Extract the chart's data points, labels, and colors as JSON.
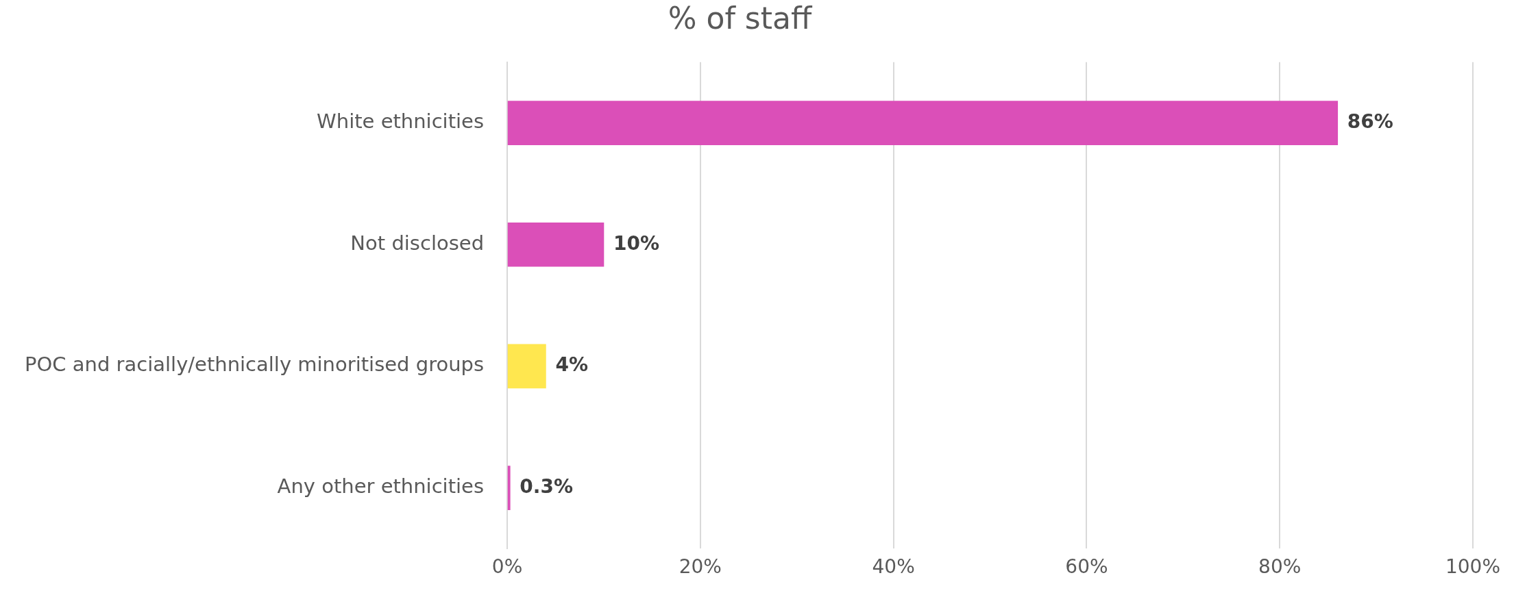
{
  "chart_data": {
    "type": "bar",
    "orientation": "horizontal",
    "title": "% of staff",
    "categories": [
      "White ethnicities",
      "Not disclosed",
      "POC and racially/ethnically minoritised groups",
      "Any other ethnicities"
    ],
    "values": [
      86,
      10,
      4,
      0.3
    ],
    "colors": [
      "#db4fb8",
      "#db4fb8",
      "#ffe74f",
      "#db4fb8"
    ],
    "value_labels": [
      "86%",
      "10%",
      "4%",
      "0.3%"
    ],
    "xlim": [
      0,
      100
    ],
    "xticks": [
      {
        "value": 0,
        "label": "0%"
      },
      {
        "value": 20,
        "label": "20%"
      },
      {
        "value": 40,
        "label": "40%"
      },
      {
        "value": 60,
        "label": "60%"
      },
      {
        "value": 80,
        "label": "80%"
      },
      {
        "value": 100,
        "label": "100%"
      }
    ],
    "grid": "x",
    "legend": false
  }
}
